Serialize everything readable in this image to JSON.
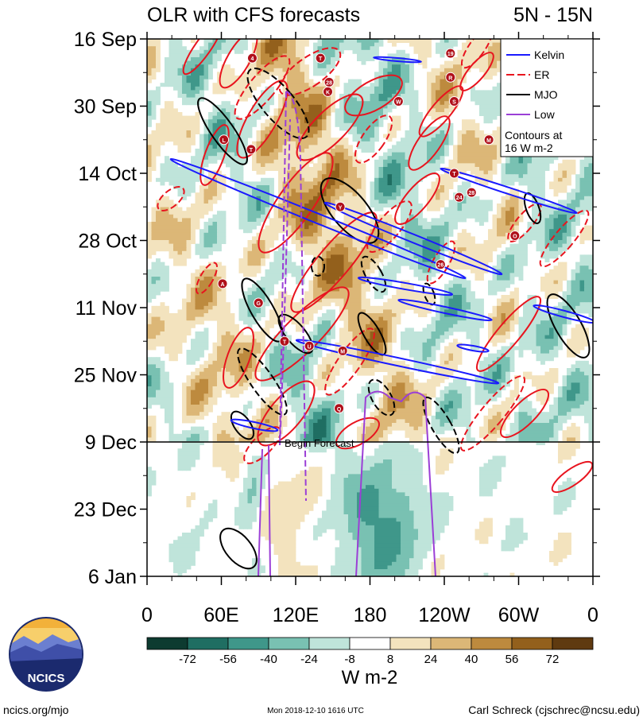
{
  "chart_data": {
    "type": "heatmap",
    "title": "OLR with CFS forecasts",
    "subtitle": "5N - 15N",
    "xlabel": "",
    "ylabel": "",
    "x_ticks": [
      "0",
      "60E",
      "120E",
      "180",
      "120W",
      "60W",
      "0"
    ],
    "x_tick_values": [
      0,
      60,
      120,
      180,
      240,
      300,
      360
    ],
    "xlim": [
      0,
      360
    ],
    "y_ticks": [
      "16 Sep",
      "30 Sep",
      "14 Oct",
      "28 Oct",
      "11 Nov",
      "25 Nov",
      "9 Dec",
      "23 Dec",
      "6 Jan"
    ],
    "y_tick_values": [
      0,
      14,
      28,
      42,
      56,
      70,
      84,
      98,
      112
    ],
    "ylim": [
      0,
      112
    ],
    "y_direction": "time increases downward",
    "forecast_start": {
      "day": 84,
      "label": "Begin Forecast"
    },
    "colorbar": {
      "levels": [
        "-72",
        "-56",
        "-40",
        "-24",
        "-8",
        "8",
        "24",
        "40",
        "56",
        "72"
      ],
      "level_values": [
        -72,
        -56,
        -40,
        -24,
        -8,
        8,
        24,
        40,
        56,
        72
      ],
      "colors": [
        "#0d3b30",
        "#1f6e62",
        "#3f978a",
        "#79c1b2",
        "#bfe4da",
        "#ffffff",
        "#f3e3be",
        "#dcb777",
        "#bd8a3e",
        "#93601c",
        "#5f3a10"
      ],
      "units": "W m-2"
    },
    "legend": {
      "placement": "top-right",
      "entries": [
        {
          "label": "Kelvin",
          "color": "#1a1aff",
          "style": "solid"
        },
        {
          "label": "ER",
          "color": "#e8141e",
          "style": "dashed"
        },
        {
          "label": "MJO",
          "color": "#000000",
          "style": "solid"
        },
        {
          "label": "Low",
          "color": "#9b3fd6",
          "style": "solid"
        }
      ],
      "note": "Contours at\n16 W m-2"
    },
    "storm_markers": [
      {
        "label": "4",
        "lon": 85,
        "day": 4
      },
      {
        "label": "T",
        "lon": 140,
        "day": 4
      },
      {
        "label": "19",
        "lon": 245,
        "day": 3
      },
      {
        "label": "R",
        "lon": 245,
        "day": 8
      },
      {
        "label": "28",
        "lon": 147,
        "day": 9
      },
      {
        "label": "K",
        "lon": 146,
        "day": 11
      },
      {
        "label": "W",
        "lon": 203,
        "day": 13
      },
      {
        "label": "S",
        "lon": 248,
        "day": 13
      },
      {
        "label": "L",
        "lon": 62,
        "day": 21
      },
      {
        "label": "T",
        "lon": 84,
        "day": 23
      },
      {
        "label": "M",
        "lon": 276,
        "day": 21
      },
      {
        "label": "T",
        "lon": 248,
        "day": 28
      },
      {
        "label": "24",
        "lon": 252,
        "day": 33
      },
      {
        "label": "28",
        "lon": 262,
        "day": 32
      },
      {
        "label": "Y",
        "lon": 156,
        "day": 35
      },
      {
        "label": "O",
        "lon": 297,
        "day": 41
      },
      {
        "label": "26",
        "lon": 237,
        "day": 47
      },
      {
        "label": "A",
        "lon": 61,
        "day": 51
      },
      {
        "label": "G",
        "lon": 90,
        "day": 55
      },
      {
        "label": "T",
        "lon": 111,
        "day": 63
      },
      {
        "label": "U",
        "lon": 131,
        "day": 64
      },
      {
        "label": "M",
        "lon": 158,
        "day": 65
      },
      {
        "label": "Q",
        "lon": 155,
        "day": 77
      }
    ]
  },
  "branding": {
    "logo_text": "NCICS",
    "url": "ncics.org/mjo",
    "timestamp": "Mon 2018-12-10 1616 UTC",
    "author": "Carl Schreck (cjschrec@ncsu.edu)"
  }
}
